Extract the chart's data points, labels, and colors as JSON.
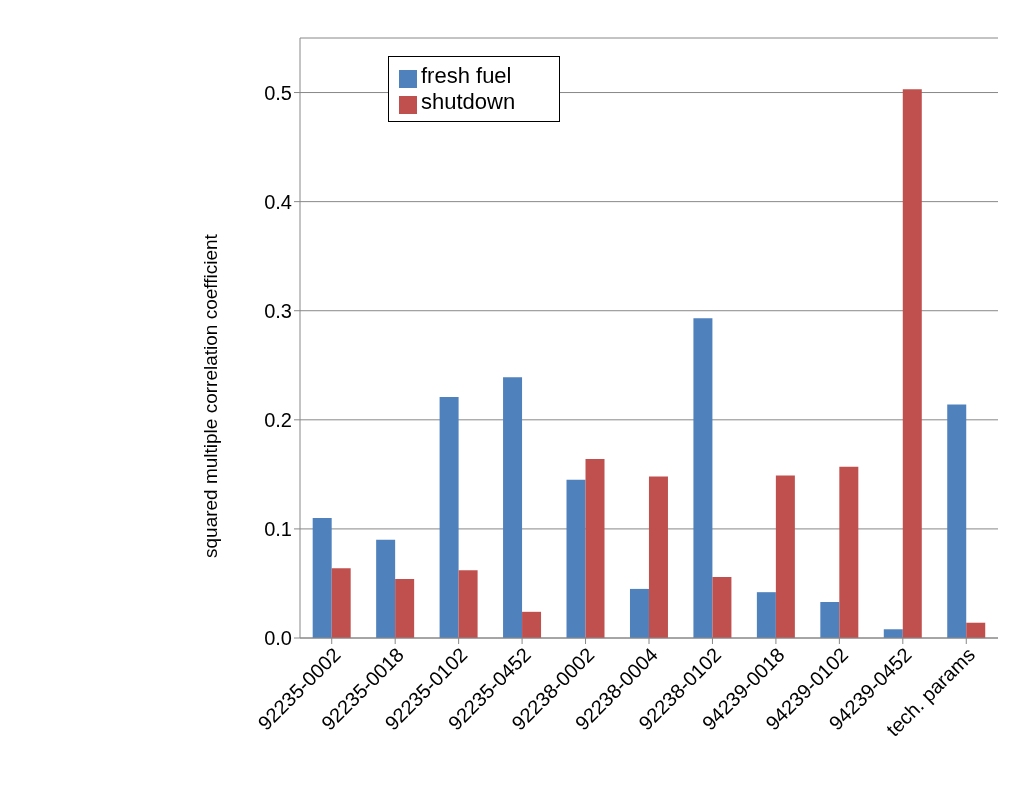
{
  "chart_data": {
    "type": "bar",
    "ylabel": "squared multiple correlation coefficient",
    "categories": [
      "92235-0002",
      "92235-0018",
      "92235-0102",
      "92235-0452",
      "92238-0002",
      "92238-0004",
      "92238-0102",
      "94239-0018",
      "94239-0102",
      "94239-0452",
      "tech. params"
    ],
    "series": [
      {
        "name": "fresh fuel",
        "color": "#4f81bd",
        "values": [
          0.11,
          0.09,
          0.221,
          0.239,
          0.145,
          0.045,
          0.293,
          0.042,
          0.033,
          0.008,
          0.214
        ]
      },
      {
        "name": "shutdown",
        "color": "#c0504d",
        "values": [
          0.064,
          0.054,
          0.062,
          0.024,
          0.164,
          0.148,
          0.056,
          0.149,
          0.157,
          0.503,
          0.014
        ]
      }
    ],
    "ylim": [
      0,
      0.55
    ],
    "yticks": [
      {
        "value": 0,
        "label": "0.0"
      },
      {
        "value": 0.1,
        "label": "0.1"
      },
      {
        "value": 0.2,
        "label": "0.2"
      },
      {
        "value": 0.3,
        "label": "0.3"
      },
      {
        "value": 0.4,
        "label": "0.4"
      },
      {
        "value": 0.5,
        "label": "0.5"
      }
    ],
    "grid": "y",
    "legend": "top"
  }
}
